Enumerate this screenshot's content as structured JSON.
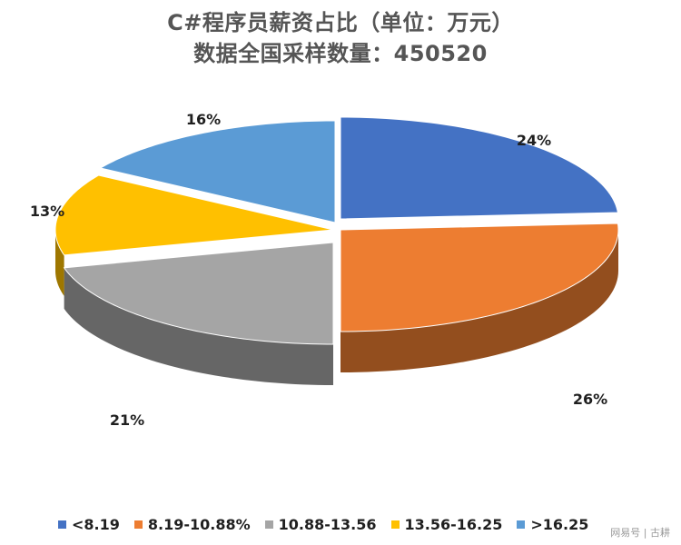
{
  "chart_data": {
    "type": "pie",
    "title": "C#程序员薪资占比（单位：万元）",
    "subtitle": "数据全国采样数量：450520",
    "categories": [
      "<8.19",
      "8.19-10.88%",
      "10.88-13.56",
      "13.56-16.25",
      ">16.25"
    ],
    "values": [
      24,
      26,
      21,
      13,
      16
    ],
    "value_labels": [
      "24%",
      "26%",
      "21%",
      "13%",
      "16%"
    ],
    "colors": [
      "#4472C4",
      "#ED7D31",
      "#A5A5A5",
      "#FFC000",
      "#5B9BD5"
    ],
    "style": "3d-exploded",
    "legend_position": "bottom"
  },
  "watermark": "网易号 | 古耕"
}
